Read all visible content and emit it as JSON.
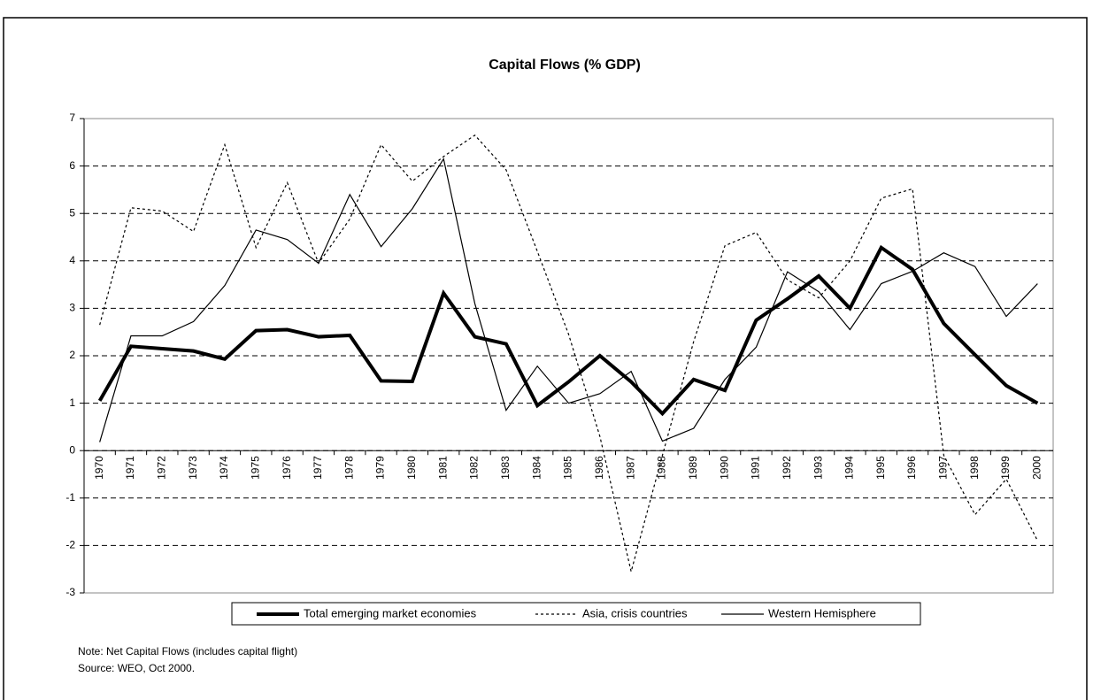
{
  "chart_data": {
    "type": "line",
    "title": "Capital Flows (% GDP)",
    "note": "Note: Net Capital Flows (includes capital flight)",
    "source": "Source: WEO, Oct 2000.",
    "categories": [
      "1970",
      "1971",
      "1972",
      "1973",
      "1974",
      "1975",
      "1976",
      "1977",
      "1978",
      "1979",
      "1980",
      "1981",
      "1982",
      "1983",
      "1984",
      "1985",
      "1986",
      "1987",
      "1988",
      "1989",
      "1990",
      "1991",
      "1992",
      "1993",
      "1994",
      "1995",
      "1996",
      "1997",
      "1998",
      "1999",
      "2000"
    ],
    "series": [
      {
        "name": "Total emerging market economies",
        "color": "#000000",
        "style": "thick",
        "values": [
          1.05,
          2.2,
          2.15,
          2.1,
          1.93,
          2.53,
          2.55,
          2.4,
          2.43,
          1.47,
          1.46,
          3.32,
          2.4,
          2.25,
          0.95,
          1.45,
          2.0,
          1.45,
          0.78,
          1.5,
          1.27,
          2.75,
          3.2,
          3.68,
          3.0,
          4.28,
          3.82,
          2.68,
          2.02,
          1.37,
          1.0
        ]
      },
      {
        "name": "Asia, crisis countries",
        "color": "#000000",
        "style": "dotted",
        "values": [
          2.65,
          5.12,
          5.05,
          4.62,
          6.45,
          4.28,
          5.65,
          3.95,
          4.88,
          6.45,
          5.68,
          6.2,
          6.65,
          5.92,
          4.2,
          2.45,
          0.3,
          -2.55,
          -0.1,
          2.3,
          4.32,
          4.6,
          3.6,
          3.22,
          4.0,
          5.32,
          5.52,
          -0.1,
          -1.35,
          -0.6,
          -1.9
        ]
      },
      {
        "name": "Western Hemisphere",
        "color": "#000000",
        "style": "thin",
        "values": [
          0.18,
          2.42,
          2.42,
          2.72,
          3.48,
          4.65,
          4.45,
          3.95,
          5.4,
          4.3,
          5.1,
          6.15,
          3.1,
          0.85,
          1.78,
          1.0,
          1.2,
          1.67,
          0.2,
          0.47,
          1.5,
          2.18,
          3.77,
          3.35,
          2.55,
          3.52,
          3.78,
          4.17,
          3.88,
          2.83,
          3.52
        ]
      }
    ],
    "ylim": [
      -3,
      7
    ],
    "yticks": [
      -3,
      -2,
      -1,
      0,
      1,
      2,
      3,
      4,
      5,
      6,
      7
    ],
    "grid": true,
    "legend": "bottom"
  }
}
